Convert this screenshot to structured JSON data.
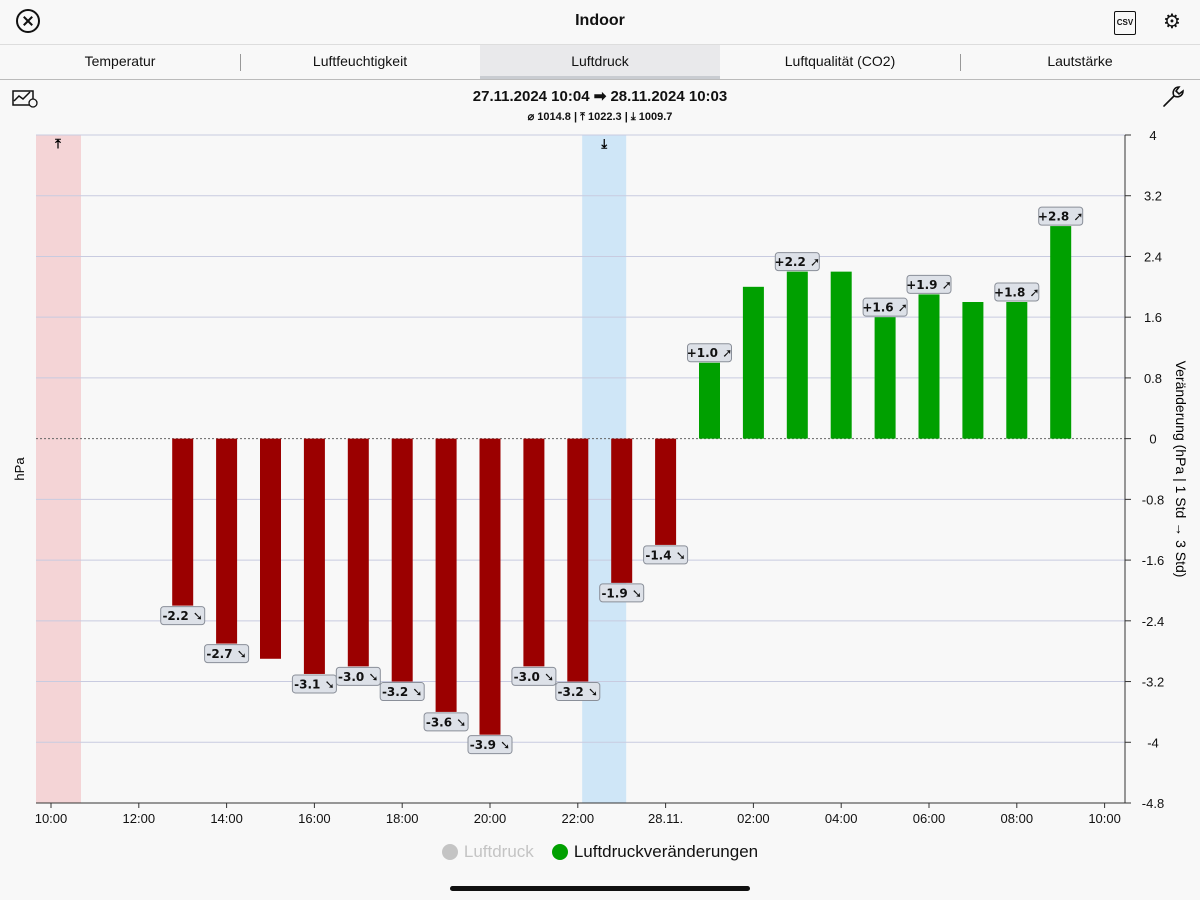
{
  "header": {
    "title": "Indoor"
  },
  "tabs": [
    {
      "label": "Temperatur",
      "active": false
    },
    {
      "label": "Luftfeuchtigkeit",
      "active": false
    },
    {
      "label": "Luftdruck",
      "active": true
    },
    {
      "label": "Luftqualität (CO2)",
      "active": false
    },
    {
      "label": "Lautstärke",
      "active": false
    }
  ],
  "toolbar": {
    "csv_label": "CSV",
    "gear_glyph": "⚙"
  },
  "range": {
    "text": "27.11.2024 10:04 ➡ 28.11.2024 10:03",
    "stats": "⌀ 1014.8 | ⤒ 1022.3 | ⤓ 1009.7"
  },
  "colors": {
    "negative": "#9b0000",
    "positive": "#00a000",
    "max_band": "#f4d4d6",
    "min_band": "#cfe6f7",
    "label_bg": "#dde1e8"
  },
  "chart_data": {
    "type": "bar",
    "ylabel_left": "hPa",
    "ylabel_right": "Veränderung (hPa | 1 Std → 3 Std)",
    "ylim": [
      -4.8,
      4
    ],
    "yticks": [
      "4",
      "3.2",
      "2.4",
      "1.6",
      "0.8",
      "0",
      "-0.8",
      "-1.6",
      "-2.4",
      "-3.2",
      "-4",
      "-4.8"
    ],
    "xticks": [
      "10:00",
      "12:00",
      "14:00",
      "16:00",
      "18:00",
      "20:00",
      "22:00",
      "28.11.",
      "02:00",
      "04:00",
      "06:00",
      "08:00",
      "10:00"
    ],
    "grid": true,
    "max_marker": "⤒",
    "min_marker": "⤓",
    "series": [
      {
        "name": "Luftdruckveränderungen",
        "categories": [
          "13:00",
          "14:00",
          "15:00",
          "16:00",
          "17:00",
          "18:00",
          "19:00",
          "20:00",
          "21:00",
          "22:00",
          "23:00",
          "00:00",
          "01:00",
          "02:00",
          "03:00",
          "04:00",
          "05:00",
          "06:00",
          "07:00",
          "08:00",
          "09:00"
        ],
        "values": [
          -2.2,
          -2.7,
          -2.9,
          -3.1,
          -3.0,
          -3.2,
          -3.6,
          -3.9,
          -3.0,
          -3.2,
          -1.9,
          -1.4,
          1.0,
          2.0,
          2.2,
          2.2,
          1.6,
          1.9,
          1.8,
          1.8,
          2.8
        ],
        "labels": [
          "-2.2 ➘",
          "-2.7 ➘",
          "",
          "-3.1 ➘",
          "-3.0 ➘",
          "-3.2 ➘",
          "-3.6 ➘",
          "-3.9 ➘",
          "-3.0 ➘",
          "-3.2 ➘",
          "-1.9 ➘",
          "-1.4 ➘",
          "+1.0 ➚",
          "",
          "+2.2 ➚",
          "",
          "+1.6 ➚",
          "+1.9 ➚",
          "",
          "+1.8 ➚",
          "+2.8 ➚"
        ]
      }
    ],
    "legend": [
      {
        "name": "Luftdruck",
        "color": "#c4c4c4",
        "active": false
      },
      {
        "name": "Luftdruckveränderungen",
        "color": "#00a000",
        "active": true
      }
    ]
  }
}
